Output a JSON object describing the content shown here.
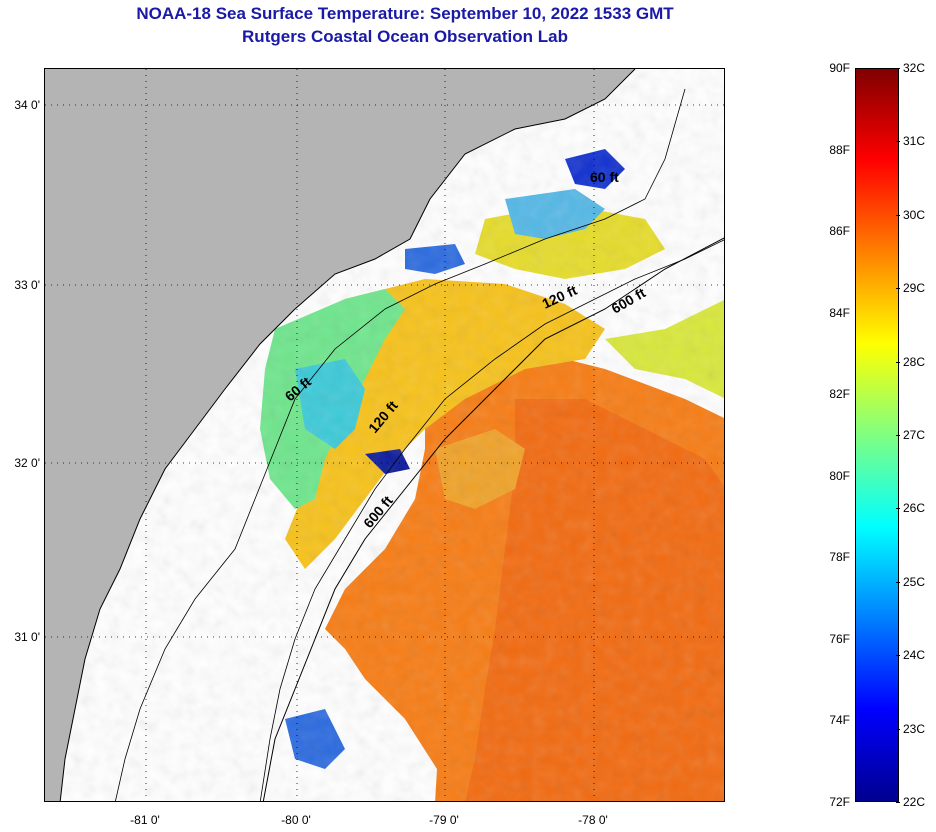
{
  "title_line1": "NOAA-18 Sea Surface Temperature:  September 10, 2022 1533 GMT",
  "title_line2": "Rutgers Coastal Ocean Observation Lab",
  "latitude_ticks": [
    "34 0'",
    "33 0'",
    "32 0'",
    "31 0'"
  ],
  "longitude_ticks": [
    "-81 0'",
    "-80 0'",
    "-79 0'",
    "-78 0'"
  ],
  "isobath_labels": [
    "60 ft",
    "120 ft",
    "600 ft",
    "60 ft",
    "120 ft",
    "600 ft"
  ],
  "colorbar": {
    "fahrenheit_labels": [
      "90F",
      "88F",
      "86F",
      "84F",
      "82F",
      "80F",
      "78F",
      "76F",
      "74F",
      "72F"
    ],
    "celsius_labels": [
      "32C",
      "31C",
      "30C",
      "29C",
      "28C",
      "27C",
      "26C",
      "25C",
      "24C",
      "23C",
      "22C"
    ],
    "colors": [
      "#00008f",
      "#0000ff",
      "#0080ff",
      "#00ffff",
      "#80ff80",
      "#ffff00",
      "#ff8000",
      "#ff0000",
      "#800000"
    ]
  },
  "colors": {
    "land": "#b4b4b4",
    "no_data": "#ffffff",
    "title": "#1a1aa6"
  }
}
